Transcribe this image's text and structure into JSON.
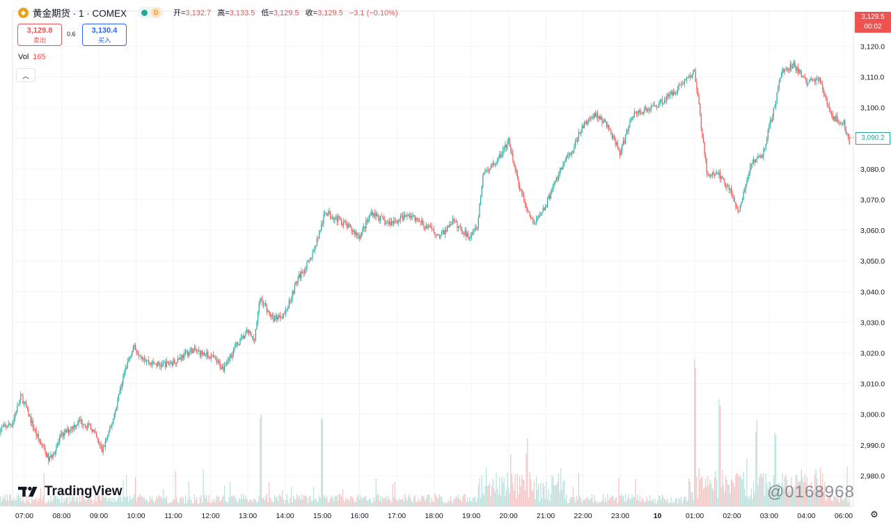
{
  "header": {
    "symbol_icon": "gold-coin-icon",
    "title": "黄金期货 · 1 · COMEX",
    "market_status_icon": "market-open-dot-icon",
    "delay_badge": "D",
    "ohlc": [
      {
        "label": "开=",
        "value": "3,132.7"
      },
      {
        "label": "高=",
        "value": "3,133.5"
      },
      {
        "label": "低=",
        "value": "3,129.5"
      },
      {
        "label": "收=",
        "value": "3,129.5"
      },
      {
        "label": "",
        "value": "−3.1 (−0.10%)"
      }
    ]
  },
  "trade": {
    "sell_price": "3,129.8",
    "sell_label": "卖出",
    "spread": "0.6",
    "buy_price": "3,130.4",
    "buy_label": "买入"
  },
  "volume": {
    "label": "Vol",
    "value": "165"
  },
  "price_tag": {
    "price": "3,129.5",
    "countdown": "00:02"
  },
  "current_tag": "3,090.2",
  "branding": "TradingView",
  "watermark": "@0168968",
  "colors": {
    "up": "#26a69a",
    "down": "#ef5350",
    "up_vol": "#b6e0d9",
    "down_vol": "#f5c2c1"
  },
  "chart_data": {
    "type": "candlestick",
    "y_ticks": [
      "3,120.0",
      "3,110.0",
      "3,100.0",
      "3,090.0",
      "3,080.0",
      "3,070.0",
      "3,060.0",
      "3,050.0",
      "3,040.0",
      "3,030.0",
      "3,020.0",
      "3,010.0",
      "3,000.0",
      "2,990.0",
      "2,980.0"
    ],
    "ylim": [
      2976,
      3130
    ],
    "x_ticks": [
      "07:00",
      "08:00",
      "09:00",
      "10:00",
      "11:00",
      "12:00",
      "13:00",
      "14:00",
      "15:00",
      "16:00",
      "17:00",
      "18:00",
      "19:00",
      "20:00",
      "21:00",
      "22:00",
      "23:00",
      "10",
      "01:00",
      "02:00",
      "03:00",
      "04:00",
      "06:00"
    ],
    "grid": true,
    "price_path": [
      [
        "06:20",
        2995
      ],
      [
        "06:40",
        2997
      ],
      [
        "06:55",
        3006
      ],
      [
        "07:20",
        2993
      ],
      [
        "07:40",
        2985
      ],
      [
        "08:00",
        2993
      ],
      [
        "08:30",
        2998
      ],
      [
        "08:50",
        2995
      ],
      [
        "09:05",
        2988
      ],
      [
        "09:20",
        2996
      ],
      [
        "09:40",
        3013
      ],
      [
        "09:55",
        3022
      ],
      [
        "10:20",
        3017
      ],
      [
        "10:40",
        3016
      ],
      [
        "11:00",
        3017
      ],
      [
        "11:30",
        3021
      ],
      [
        "12:00",
        3019
      ],
      [
        "12:20",
        3015
      ],
      [
        "12:40",
        3022
      ],
      [
        "13:00",
        3027
      ],
      [
        "13:10",
        3024
      ],
      [
        "13:20",
        3038
      ],
      [
        "13:40",
        3031
      ],
      [
        "14:00",
        3033
      ],
      [
        "14:20",
        3044
      ],
      [
        "14:40",
        3050
      ],
      [
        "14:55",
        3059
      ],
      [
        "15:05",
        3066
      ],
      [
        "15:30",
        3063
      ],
      [
        "16:00",
        3058
      ],
      [
        "16:20",
        3066
      ],
      [
        "16:45",
        3062
      ],
      [
        "17:20",
        3065
      ],
      [
        "17:50",
        3061
      ],
      [
        "18:10",
        3058
      ],
      [
        "18:30",
        3063
      ],
      [
        "18:55",
        3058
      ],
      [
        "19:10",
        3062
      ],
      [
        "19:20",
        3079
      ],
      [
        "19:40",
        3082
      ],
      [
        "20:00",
        3089
      ],
      [
        "20:20",
        3072
      ],
      [
        "20:40",
        3062
      ],
      [
        "21:00",
        3068
      ],
      [
        "21:20",
        3078
      ],
      [
        "21:40",
        3085
      ],
      [
        "22:00",
        3094
      ],
      [
        "22:20",
        3098
      ],
      [
        "22:40",
        3094
      ],
      [
        "23:00",
        3085
      ],
      [
        "23:20",
        3098
      ],
      [
        "23:40",
        3099
      ],
      [
        "00:00",
        3101
      ],
      [
        "00:20",
        3104
      ],
      [
        "00:40",
        3108
      ],
      [
        "01:00",
        3112
      ],
      [
        "01:20",
        3078
      ],
      [
        "01:40",
        3078
      ],
      [
        "02:00",
        3072
      ],
      [
        "02:10",
        3065
      ],
      [
        "02:30",
        3082
      ],
      [
        "02:50",
        3085
      ],
      [
        "03:10",
        3102
      ],
      [
        "03:20",
        3112
      ],
      [
        "03:40",
        3114
      ],
      [
        "04:00",
        3108
      ],
      [
        "04:20",
        3110
      ],
      [
        "04:40",
        3097
      ],
      [
        "05:00",
        3095
      ],
      [
        "05:10",
        3088
      ]
    ],
    "volume_spikes": [
      {
        "time": "13:20",
        "level": "high"
      },
      {
        "time": "15:00",
        "level": "high"
      },
      {
        "time": "20:30",
        "level": "medium"
      },
      {
        "time": "01:00",
        "level": "highest"
      },
      {
        "time": "01:40",
        "level": "high"
      },
      {
        "time": "02:40",
        "level": "medium"
      },
      {
        "time": "03:10",
        "level": "medium"
      }
    ],
    "last_price": "3,129.5",
    "current_marker": "3,090.2"
  }
}
